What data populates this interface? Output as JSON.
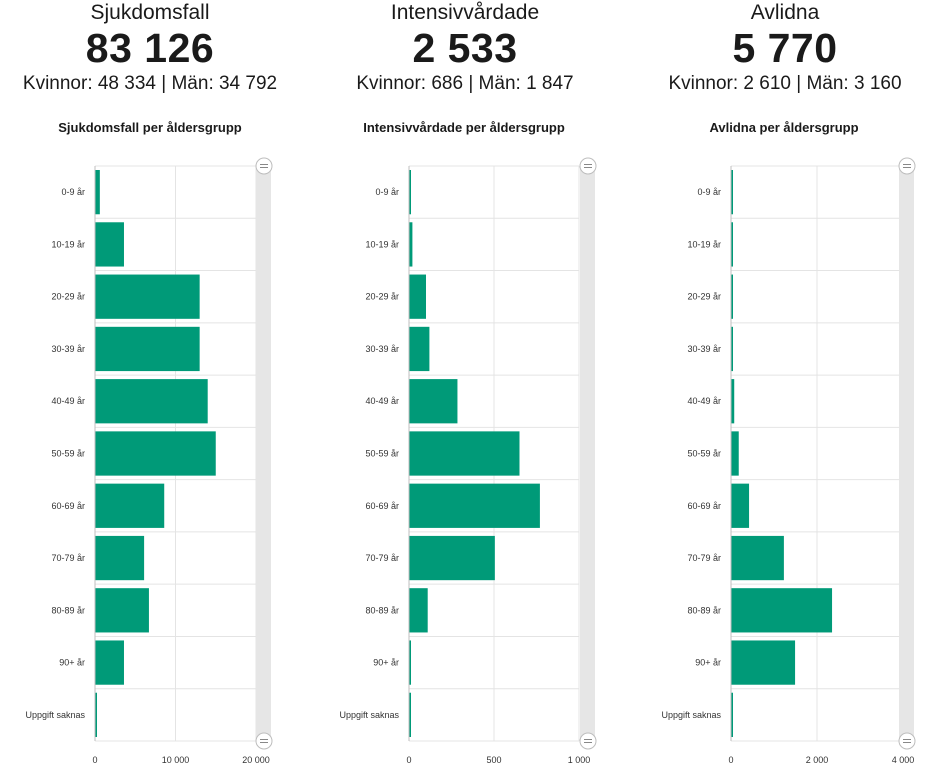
{
  "summary": [
    {
      "label": "Sjukdomsfall",
      "value": "83 126",
      "sub": "Kvinnor: 48 334 | Män: 34 792"
    },
    {
      "label": "Intensivvårdade",
      "value": "2 533",
      "sub": "Kvinnor: 686 | Män: 1 847"
    },
    {
      "label": "Avlidna",
      "value": "5 770",
      "sub": "Kvinnor: 2 610 | Män: 3 160"
    }
  ],
  "colors": {
    "bar": "#009A78",
    "grid": "#e4e4e4",
    "scroll": "#e6e6e6"
  },
  "chart_data": [
    {
      "type": "bar",
      "orientation": "horizontal",
      "title": "Sjukdomsfall per åldersgrupp",
      "categories": [
        "0-9 år",
        "10-19 år",
        "20-29 år",
        "30-39 år",
        "40-49 år",
        "50-59 år",
        "60-69 år",
        "70-79 år",
        "80-89 år",
        "90+ år",
        "Uppgift saknas"
      ],
      "values": [
        600,
        3600,
        13000,
        13000,
        14000,
        15000,
        8600,
        6100,
        6700,
        3600,
        50
      ],
      "xlim": [
        0,
        20000
      ],
      "ticks": [
        0,
        10000,
        20000
      ],
      "tick_labels": [
        "0",
        "10 000",
        "20 000"
      ]
    },
    {
      "type": "bar",
      "orientation": "horizontal",
      "title": "Intensivvårdade per åldersgrupp",
      "categories": [
        "0-9 år",
        "10-19 år",
        "20-29 år",
        "30-39 år",
        "40-49 år",
        "50-59 år",
        "60-69 år",
        "70-79 år",
        "80-89 år",
        "90+ år",
        "Uppgift saknas"
      ],
      "values": [
        10,
        20,
        100,
        120,
        285,
        650,
        770,
        505,
        110,
        10,
        3
      ],
      "xlim": [
        0,
        1000
      ],
      "ticks": [
        0,
        500,
        1000
      ],
      "tick_labels": [
        "0",
        "500",
        "1 000"
      ]
    },
    {
      "type": "bar",
      "orientation": "horizontal",
      "title": "Avlidna per åldersgrupp",
      "categories": [
        "0-9 år",
        "10-19 år",
        "20-29 år",
        "30-39 år",
        "40-49 år",
        "50-59 år",
        "60-69 år",
        "70-79 år",
        "80-89 år",
        "90+ år",
        "Uppgift saknas"
      ],
      "values": [
        3,
        3,
        10,
        35,
        75,
        180,
        420,
        1230,
        2350,
        1490,
        3
      ],
      "xlim": [
        0,
        4000
      ],
      "ticks": [
        0,
        2000,
        4000
      ],
      "tick_labels": [
        "0",
        "2 000",
        "4 000"
      ]
    }
  ]
}
